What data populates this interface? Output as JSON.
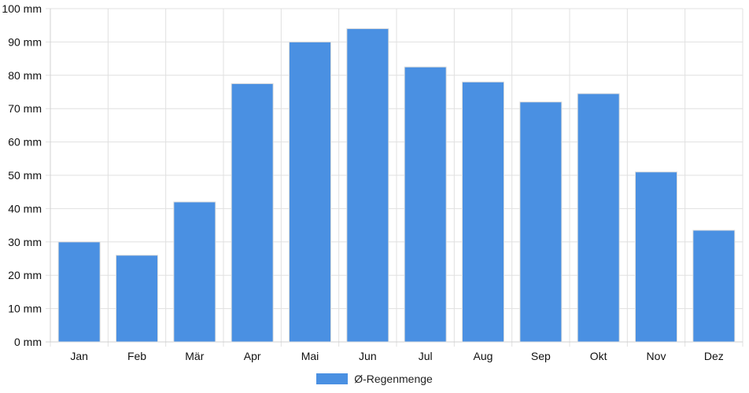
{
  "chart_data": {
    "type": "bar",
    "categories": [
      "Jan",
      "Feb",
      "Mär",
      "Apr",
      "Mai",
      "Jun",
      "Jul",
      "Aug",
      "Sep",
      "Okt",
      "Nov",
      "Dez"
    ],
    "series": [
      {
        "name": "Ø-Regenmenge",
        "values": [
          30,
          26,
          42,
          77.5,
          90,
          94,
          82.5,
          78,
          72,
          74.5,
          51,
          33.5
        ],
        "color": "#4a90e2"
      }
    ],
    "ylim": [
      0,
      100
    ],
    "y_ticks": [
      "0 mm",
      "10 mm",
      "20 mm",
      "30 mm",
      "40 mm",
      "50 mm",
      "60 mm",
      "70 mm",
      "80 mm",
      "90 mm",
      "100 mm"
    ],
    "y_tick_values": [
      0,
      10,
      20,
      30,
      40,
      50,
      60,
      70,
      80,
      90,
      100
    ],
    "grid": true,
    "legend": "bottom-center",
    "colors": {
      "grid": "#e0e0e0",
      "axis": "#d0d0d0",
      "bar_outline": "#dddddd"
    }
  }
}
